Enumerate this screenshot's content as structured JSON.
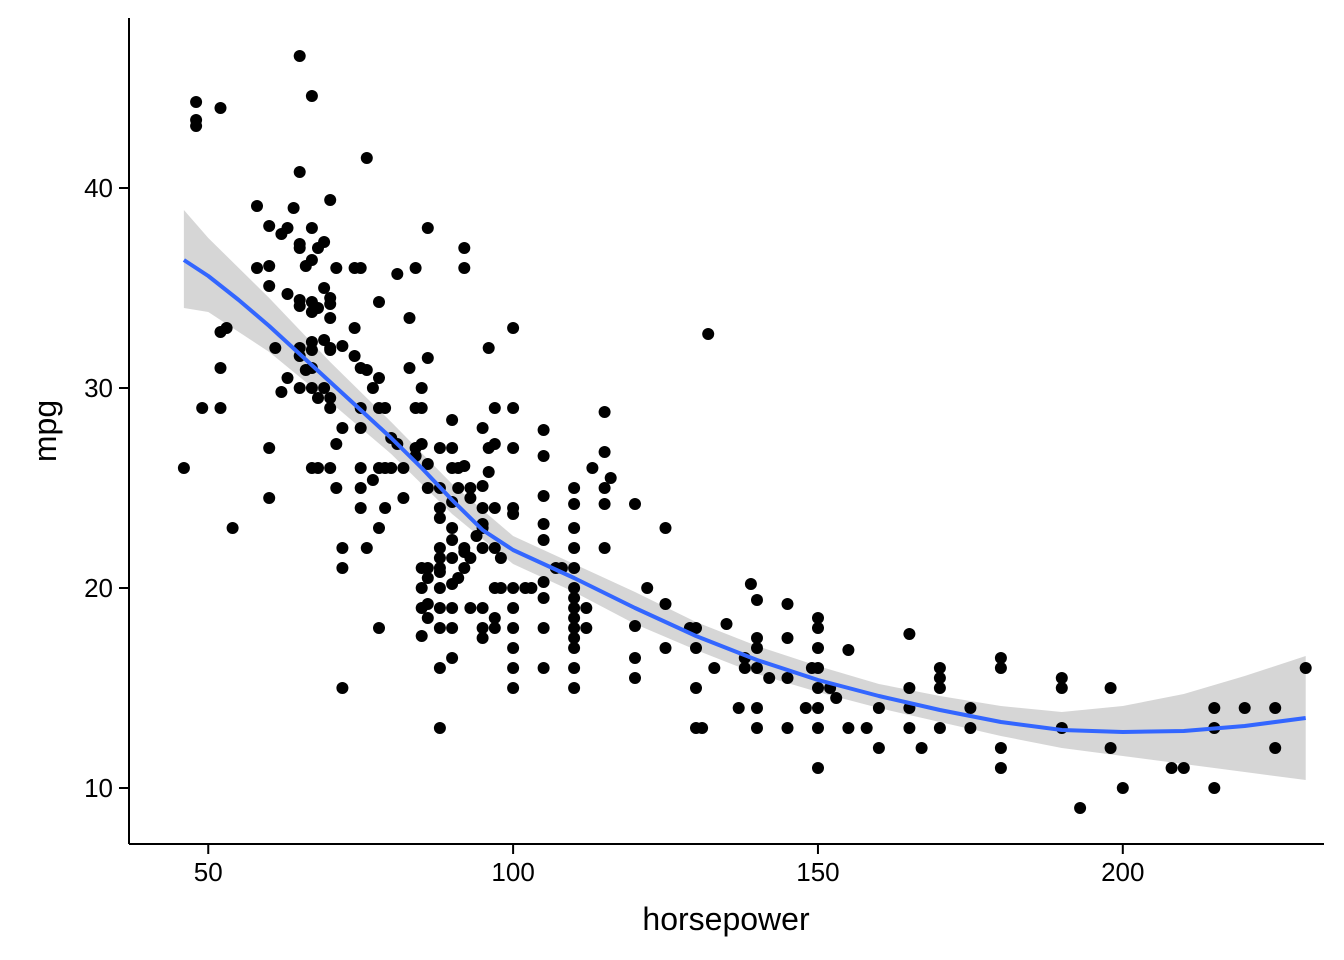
{
  "chart_data": {
    "type": "scatter",
    "title": "",
    "xlabel": "horsepower",
    "ylabel": "mpg",
    "xlim": [
      37,
      233
    ],
    "ylim": [
      7.2,
      48.5
    ],
    "x_ticks": [
      50,
      100,
      150,
      200
    ],
    "y_ticks": [
      10,
      20,
      30,
      40
    ],
    "grid": false,
    "legend": "none",
    "colors": {
      "points": "#000000",
      "smooth_line": "#3366FF",
      "ribbon": "#999999"
    },
    "points": [
      [
        46,
        26
      ],
      [
        48,
        44.3
      ],
      [
        48,
        43.4
      ],
      [
        48,
        43.1
      ],
      [
        49,
        29
      ],
      [
        52,
        44
      ],
      [
        52,
        32.8
      ],
      [
        52,
        31
      ],
      [
        52,
        29
      ],
      [
        53,
        33
      ],
      [
        54,
        23
      ],
      [
        58,
        39.1
      ],
      [
        58,
        36
      ],
      [
        60,
        38.1
      ],
      [
        60,
        36.1
      ],
      [
        60,
        35.1
      ],
      [
        60,
        27
      ],
      [
        60,
        24.5
      ],
      [
        61,
        32
      ],
      [
        62,
        37.7
      ],
      [
        62,
        29.8
      ],
      [
        63,
        38
      ],
      [
        63,
        34.7
      ],
      [
        63,
        30.5
      ],
      [
        64,
        39
      ],
      [
        65,
        46.6
      ],
      [
        65,
        40.8
      ],
      [
        65,
        37.2
      ],
      [
        65,
        37
      ],
      [
        65,
        34.4
      ],
      [
        65,
        34.1
      ],
      [
        65,
        32
      ],
      [
        65,
        31.6
      ],
      [
        65,
        30
      ],
      [
        66,
        36.1
      ],
      [
        66,
        30.9
      ],
      [
        67,
        44.6
      ],
      [
        67,
        38
      ],
      [
        67,
        36.4
      ],
      [
        67,
        34.3
      ],
      [
        67,
        33.8
      ],
      [
        67,
        32.3
      ],
      [
        67,
        31.9
      ],
      [
        67,
        31
      ],
      [
        67,
        30
      ],
      [
        67,
        26
      ],
      [
        68,
        37
      ],
      [
        68,
        34
      ],
      [
        68,
        29.5
      ],
      [
        68,
        26
      ],
      [
        69,
        37.3
      ],
      [
        69,
        35
      ],
      [
        69,
        32.4
      ],
      [
        69,
        30
      ],
      [
        70,
        39.4
      ],
      [
        70,
        34.5
      ],
      [
        70,
        34.2
      ],
      [
        70,
        33.5
      ],
      [
        70,
        32
      ],
      [
        70,
        31.9
      ],
      [
        70,
        29.5
      ],
      [
        70,
        29
      ],
      [
        70,
        26
      ],
      [
        71,
        36
      ],
      [
        71,
        27.2
      ],
      [
        71,
        25
      ],
      [
        72,
        32.1
      ],
      [
        72,
        28
      ],
      [
        72,
        22
      ],
      [
        72,
        21
      ],
      [
        72,
        15
      ],
      [
        74,
        36
      ],
      [
        74,
        33
      ],
      [
        74,
        31.6
      ],
      [
        75,
        36
      ],
      [
        75,
        31
      ],
      [
        75,
        29
      ],
      [
        75,
        28
      ],
      [
        75,
        26
      ],
      [
        75,
        25
      ],
      [
        75,
        24
      ],
      [
        76,
        41.5
      ],
      [
        76,
        30.9
      ],
      [
        76,
        22
      ],
      [
        77,
        30
      ],
      [
        77,
        25.4
      ],
      [
        78,
        34.3
      ],
      [
        78,
        30.5
      ],
      [
        78,
        29
      ],
      [
        78,
        26
      ],
      [
        78,
        23
      ],
      [
        78,
        18
      ],
      [
        79,
        29
      ],
      [
        79,
        26
      ],
      [
        79,
        24
      ],
      [
        80,
        27.5
      ],
      [
        80,
        26
      ],
      [
        81,
        35.7
      ],
      [
        81,
        27.2
      ],
      [
        82,
        26
      ],
      [
        82,
        24.5
      ],
      [
        83,
        33.5
      ],
      [
        83,
        31
      ],
      [
        84,
        36
      ],
      [
        84,
        29
      ],
      [
        84,
        27
      ],
      [
        84,
        26.6
      ],
      [
        85,
        30
      ],
      [
        85,
        29
      ],
      [
        85,
        27.2
      ],
      [
        85,
        21
      ],
      [
        85,
        20
      ],
      [
        85,
        19
      ],
      [
        85,
        17.6
      ],
      [
        86,
        38
      ],
      [
        86,
        31.5
      ],
      [
        86,
        26.2
      ],
      [
        86,
        25
      ],
      [
        86,
        21
      ],
      [
        86,
        20.5
      ],
      [
        86,
        19.2
      ],
      [
        86,
        18.5
      ],
      [
        88,
        27
      ],
      [
        88,
        24
      ],
      [
        88,
        22
      ],
      [
        88,
        21
      ],
      [
        88,
        20
      ],
      [
        88,
        18
      ],
      [
        88,
        16
      ],
      [
        88,
        13
      ],
      [
        88,
        25
      ],
      [
        88,
        23.5
      ],
      [
        88,
        21.5
      ],
      [
        88,
        19
      ],
      [
        88,
        20.8
      ],
      [
        90,
        28.4
      ],
      [
        90,
        27
      ],
      [
        90,
        26
      ],
      [
        90,
        24.3
      ],
      [
        90,
        23
      ],
      [
        90,
        22.4
      ],
      [
        90,
        21.5
      ],
      [
        90,
        20.2
      ],
      [
        90,
        19
      ],
      [
        90,
        18
      ],
      [
        90,
        16.5
      ],
      [
        91,
        26
      ],
      [
        91,
        25
      ],
      [
        91,
        20.5
      ],
      [
        92,
        26.1
      ],
      [
        92,
        37
      ],
      [
        92,
        36
      ],
      [
        92,
        22
      ],
      [
        92,
        21.8
      ],
      [
        92,
        21
      ],
      [
        93,
        25
      ],
      [
        93,
        24.5
      ],
      [
        93,
        21.5
      ],
      [
        93,
        19
      ],
      [
        94,
        22.6
      ],
      [
        95,
        28
      ],
      [
        95,
        25.1
      ],
      [
        95,
        24
      ],
      [
        95,
        23.2
      ],
      [
        95,
        23
      ],
      [
        95,
        22
      ],
      [
        95,
        19
      ],
      [
        95,
        18
      ],
      [
        95,
        17.5
      ],
      [
        96,
        27
      ],
      [
        96,
        25.8
      ],
      [
        96,
        32
      ],
      [
        97,
        29
      ],
      [
        97,
        27.2
      ],
      [
        97,
        24
      ],
      [
        97,
        22
      ],
      [
        97,
        20
      ],
      [
        97,
        18.5
      ],
      [
        97,
        18
      ],
      [
        98,
        21.5
      ],
      [
        98,
        20
      ],
      [
        100,
        33
      ],
      [
        100,
        29
      ],
      [
        100,
        27
      ],
      [
        100,
        24
      ],
      [
        100,
        23.7
      ],
      [
        100,
        20
      ],
      [
        100,
        19
      ],
      [
        100,
        18
      ],
      [
        100,
        17
      ],
      [
        100,
        16
      ],
      [
        100,
        15
      ],
      [
        102,
        20
      ],
      [
        103,
        20
      ],
      [
        105,
        27.9
      ],
      [
        105,
        26.6
      ],
      [
        105,
        24.6
      ],
      [
        105,
        23.2
      ],
      [
        105,
        22.4
      ],
      [
        105,
        20.3
      ],
      [
        105,
        19.5
      ],
      [
        105,
        18
      ],
      [
        105,
        16
      ],
      [
        107,
        21
      ],
      [
        108,
        21
      ],
      [
        110,
        25
      ],
      [
        110,
        24.2
      ],
      [
        110,
        23
      ],
      [
        110,
        22
      ],
      [
        110,
        21
      ],
      [
        110,
        20
      ],
      [
        110,
        19.5
      ],
      [
        110,
        19
      ],
      [
        110,
        18.5
      ],
      [
        110,
        18
      ],
      [
        110,
        17.5
      ],
      [
        110,
        17
      ],
      [
        110,
        16
      ],
      [
        110,
        15
      ],
      [
        112,
        19
      ],
      [
        112,
        18
      ],
      [
        113,
        26
      ],
      [
        115,
        28.8
      ],
      [
        115,
        26.8
      ],
      [
        115,
        25
      ],
      [
        115,
        24.2
      ],
      [
        115,
        22
      ],
      [
        116,
        25.5
      ],
      [
        120,
        24.2
      ],
      [
        120,
        18.1
      ],
      [
        120,
        16.5
      ],
      [
        120,
        15.5
      ],
      [
        122,
        20
      ],
      [
        125,
        23
      ],
      [
        125,
        19.2
      ],
      [
        125,
        17
      ],
      [
        129,
        18
      ],
      [
        130,
        18
      ],
      [
        130,
        17
      ],
      [
        130,
        15
      ],
      [
        130,
        13
      ],
      [
        131,
        13
      ],
      [
        132,
        32.7
      ],
      [
        133,
        16
      ],
      [
        135,
        18.2
      ],
      [
        137,
        14
      ],
      [
        138,
        16
      ],
      [
        138,
        16.5
      ],
      [
        139,
        20.2
      ],
      [
        140,
        19.4
      ],
      [
        140,
        17.5
      ],
      [
        140,
        17
      ],
      [
        140,
        16
      ],
      [
        140,
        14
      ],
      [
        140,
        13
      ],
      [
        142,
        15.5
      ],
      [
        145,
        19.2
      ],
      [
        145,
        17.5
      ],
      [
        145,
        15.5
      ],
      [
        145,
        13
      ],
      [
        148,
        14
      ],
      [
        149,
        16
      ],
      [
        150,
        18.5
      ],
      [
        150,
        18
      ],
      [
        150,
        17
      ],
      [
        150,
        16
      ],
      [
        150,
        15
      ],
      [
        150,
        14
      ],
      [
        150,
        13
      ],
      [
        150,
        11
      ],
      [
        152,
        15
      ],
      [
        153,
        14.5
      ],
      [
        155,
        16.9
      ],
      [
        155,
        13
      ],
      [
        158,
        13
      ],
      [
        160,
        14
      ],
      [
        160,
        12
      ],
      [
        165,
        17.7
      ],
      [
        165,
        15
      ],
      [
        165,
        14
      ],
      [
        165,
        13
      ],
      [
        167,
        12
      ],
      [
        170,
        16
      ],
      [
        170,
        15.5
      ],
      [
        170,
        15
      ],
      [
        170,
        13
      ],
      [
        175,
        14
      ],
      [
        175,
        13
      ],
      [
        180,
        16.5
      ],
      [
        180,
        16
      ],
      [
        180,
        12
      ],
      [
        180,
        11
      ],
      [
        190,
        15.5
      ],
      [
        190,
        15
      ],
      [
        190,
        13
      ],
      [
        193,
        9
      ],
      [
        198,
        15
      ],
      [
        198,
        12
      ],
      [
        200,
        10
      ],
      [
        208,
        11
      ],
      [
        210,
        11
      ],
      [
        215,
        14
      ],
      [
        215,
        13
      ],
      [
        215,
        10
      ],
      [
        220,
        14
      ],
      [
        225,
        14
      ],
      [
        225,
        12
      ],
      [
        230,
        16
      ]
    ],
    "smooth_line": {
      "x": [
        46,
        50,
        55,
        60,
        65,
        70,
        75,
        80,
        85,
        90,
        95,
        100,
        105,
        110,
        120,
        130,
        140,
        150,
        160,
        170,
        180,
        190,
        200,
        210,
        220,
        230
      ],
      "y": [
        36.4,
        35.6,
        34.4,
        33.1,
        31.7,
        30.3,
        28.9,
        27.5,
        26.0,
        24.4,
        22.9,
        21.9,
        21.2,
        20.5,
        19.0,
        17.6,
        16.4,
        15.4,
        14.6,
        13.9,
        13.3,
        12.9,
        12.8,
        12.85,
        13.1,
        13.5
      ]
    },
    "confidence_band": {
      "x": [
        46,
        50,
        60,
        70,
        80,
        90,
        100,
        110,
        120,
        130,
        140,
        150,
        160,
        170,
        180,
        190,
        200,
        210,
        220,
        230
      ],
      "lower": [
        34.0,
        33.8,
        31.8,
        29.3,
        26.7,
        23.7,
        21.2,
        19.8,
        18.2,
        16.9,
        15.7,
        14.8,
        14.0,
        13.3,
        12.6,
        12.0,
        11.6,
        11.2,
        10.8,
        10.4
      ],
      "upper": [
        38.9,
        37.5,
        34.5,
        31.3,
        28.3,
        25.2,
        22.6,
        21.2,
        19.8,
        18.3,
        17.1,
        16.1,
        15.2,
        14.6,
        14.1,
        13.8,
        14.1,
        14.7,
        15.6,
        16.6
      ]
    }
  }
}
